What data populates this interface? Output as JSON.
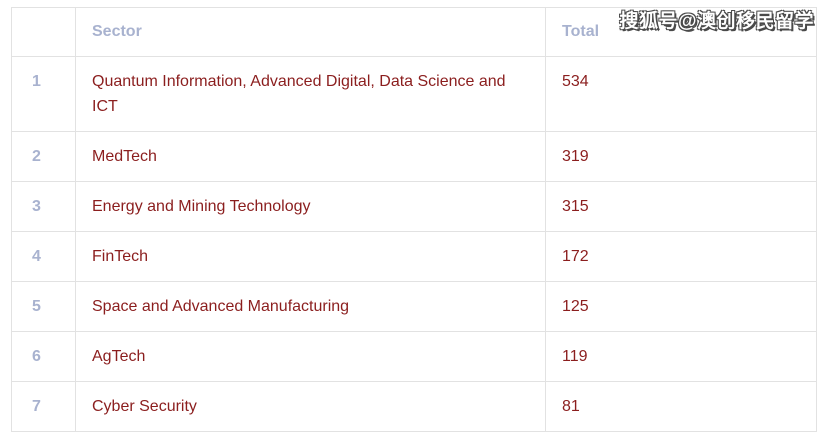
{
  "table": {
    "headers": {
      "index": "",
      "sector": "Sector",
      "total": "Total"
    },
    "rows": [
      {
        "index": "1",
        "sector": "Quantum Information, Advanced Digital, Data Science and ICT",
        "total": "534"
      },
      {
        "index": "2",
        "sector": "MedTech",
        "total": "319"
      },
      {
        "index": "3",
        "sector": "Energy and Mining Technology",
        "total": "315"
      },
      {
        "index": "4",
        "sector": "FinTech",
        "total": "172"
      },
      {
        "index": "5",
        "sector": "Space and Advanced Manufacturing",
        "total": "125"
      },
      {
        "index": "6",
        "sector": "AgTech",
        "total": "119"
      },
      {
        "index": "7",
        "sector": "Cyber Security",
        "total": "81"
      }
    ]
  },
  "watermark": {
    "text": "搜狐号@澳创移民留学"
  },
  "colors": {
    "header_text": "#a8b2cf",
    "body_text": "#8b1e1e",
    "border": "#e2e2e2",
    "watermark_fill": "#ffffff",
    "watermark_shadow": "#4a4a4a",
    "background": "#ffffff"
  }
}
